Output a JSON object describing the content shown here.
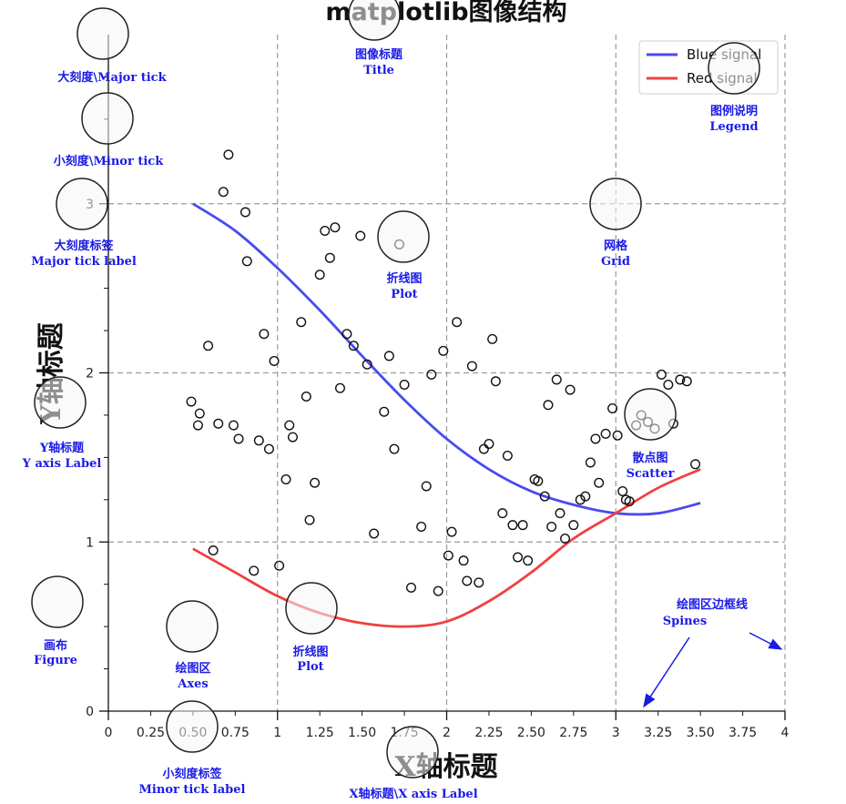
{
  "title": "matplotlib图像结构",
  "chart_data": {
    "type": "line",
    "title": "matplotlib图像结构",
    "xlabel": "X轴标题",
    "ylabel": "Y轴标题",
    "xlim": [
      0,
      4
    ],
    "ylim": [
      0,
      4
    ],
    "grid": true,
    "legend_position": "top-right",
    "x_major_ticks": [
      0,
      1,
      2,
      3,
      4
    ],
    "y_major_ticks": [
      0,
      1,
      2,
      3
    ],
    "x_minor_tick_labels": [
      "0.25",
      "0.50",
      "0.75",
      "1.25",
      "1.50",
      "1.75",
      "2.25",
      "2.50",
      "2.75",
      "3.25",
      "3.50",
      "3.75"
    ],
    "x_minor_ticks": [
      0.25,
      0.5,
      0.75,
      1.25,
      1.5,
      1.75,
      2.25,
      2.5,
      2.75,
      3.25,
      3.5,
      3.75
    ],
    "y_minor_ticks": [
      0.25,
      0.5,
      0.75,
      1.25,
      1.5,
      1.75,
      2.25,
      2.5,
      2.75,
      3.25,
      3.5,
      3.75
    ],
    "series": [
      {
        "name": "Blue signal",
        "color": "#4a4af0",
        "kind": "line",
        "x": [
          0.5,
          0.75,
          1.0,
          1.25,
          1.5,
          1.75,
          2.0,
          2.25,
          2.5,
          2.75,
          3.0,
          3.25,
          3.5
        ],
        "y": [
          3.0,
          2.84,
          2.62,
          2.37,
          2.1,
          1.84,
          1.61,
          1.43,
          1.3,
          1.22,
          1.17,
          1.17,
          1.23
        ]
      },
      {
        "name": "Red signal",
        "color": "#f04040",
        "kind": "line",
        "x": [
          0.5,
          0.75,
          1.0,
          1.25,
          1.5,
          1.75,
          2.0,
          2.25,
          2.5,
          2.75,
          3.0,
          3.25,
          3.5
        ],
        "y": [
          0.96,
          0.82,
          0.68,
          0.58,
          0.52,
          0.5,
          0.53,
          0.65,
          0.82,
          1.02,
          1.17,
          1.32,
          1.43
        ]
      },
      {
        "name": "",
        "kind": "scatter",
        "points": [
          [
            0.71,
            3.29
          ],
          [
            0.68,
            3.07
          ],
          [
            0.81,
            2.95
          ],
          [
            0.82,
            2.66
          ],
          [
            0.59,
            2.16
          ],
          [
            0.92,
            2.23
          ],
          [
            0.98,
            2.07
          ],
          [
            0.49,
            1.83
          ],
          [
            0.54,
            1.76
          ],
          [
            0.53,
            1.69
          ],
          [
            0.65,
            1.7
          ],
          [
            0.74,
            1.69
          ],
          [
            0.77,
            1.61
          ],
          [
            0.89,
            1.6
          ],
          [
            0.95,
            1.55
          ],
          [
            0.62,
            0.95
          ],
          [
            0.86,
            0.83
          ],
          [
            1.01,
            0.86
          ],
          [
            1.05,
            1.37
          ],
          [
            1.07,
            1.69
          ],
          [
            1.09,
            1.62
          ],
          [
            1.14,
            2.3
          ],
          [
            1.17,
            1.86
          ],
          [
            1.19,
            1.13
          ],
          [
            1.22,
            1.35
          ],
          [
            1.25,
            2.58
          ],
          [
            1.28,
            2.84
          ],
          [
            1.31,
            2.68
          ],
          [
            1.34,
            2.86
          ],
          [
            1.37,
            1.91
          ],
          [
            1.41,
            2.23
          ],
          [
            1.45,
            2.16
          ],
          [
            1.49,
            2.81
          ],
          [
            1.53,
            2.05
          ],
          [
            1.57,
            1.05
          ],
          [
            1.63,
            1.77
          ],
          [
            1.66,
            2.1
          ],
          [
            1.69,
            1.55
          ],
          [
            1.72,
            2.76
          ],
          [
            1.75,
            1.93
          ],
          [
            1.79,
            0.73
          ],
          [
            1.85,
            1.09
          ],
          [
            1.88,
            1.33
          ],
          [
            1.91,
            1.99
          ],
          [
            1.95,
            0.71
          ],
          [
            1.98,
            2.13
          ],
          [
            2.01,
            0.92
          ],
          [
            2.03,
            1.06
          ],
          [
            2.06,
            2.3
          ],
          [
            2.1,
            0.89
          ],
          [
            2.12,
            0.77
          ],
          [
            2.15,
            2.04
          ],
          [
            2.19,
            0.76
          ],
          [
            2.22,
            1.55
          ],
          [
            2.25,
            1.58
          ],
          [
            2.27,
            2.2
          ],
          [
            2.29,
            1.95
          ],
          [
            2.33,
            1.17
          ],
          [
            2.36,
            1.51
          ],
          [
            2.39,
            1.1
          ],
          [
            2.42,
            0.91
          ],
          [
            2.45,
            1.1
          ],
          [
            2.48,
            0.89
          ],
          [
            2.52,
            1.37
          ],
          [
            2.54,
            1.36
          ],
          [
            2.58,
            1.27
          ],
          [
            2.6,
            1.81
          ],
          [
            2.62,
            1.09
          ],
          [
            2.65,
            1.96
          ],
          [
            2.67,
            1.17
          ],
          [
            2.7,
            1.02
          ],
          [
            2.73,
            1.9
          ],
          [
            2.75,
            1.1
          ],
          [
            2.79,
            1.25
          ],
          [
            2.82,
            1.27
          ],
          [
            2.85,
            1.47
          ],
          [
            2.88,
            1.61
          ],
          [
            2.9,
            1.35
          ],
          [
            2.94,
            1.64
          ],
          [
            2.98,
            1.79
          ],
          [
            3.01,
            1.63
          ],
          [
            3.04,
            1.3
          ],
          [
            3.06,
            1.25
          ],
          [
            3.08,
            1.24
          ],
          [
            3.12,
            1.69
          ],
          [
            3.15,
            1.75
          ],
          [
            3.19,
            1.71
          ],
          [
            3.23,
            1.67
          ],
          [
            3.27,
            1.99
          ],
          [
            3.31,
            1.93
          ],
          [
            3.34,
            1.7
          ],
          [
            3.38,
            1.96
          ],
          [
            3.42,
            1.95
          ],
          [
            3.47,
            1.46
          ]
        ]
      }
    ]
  },
  "legend": [
    {
      "label": "Blue signal",
      "color": "#4a4af0"
    },
    {
      "label": "Red signal",
      "color": "#f04040"
    }
  ],
  "annotations": [
    {
      "cn": "大刻度\\Major tick",
      "en": ""
    },
    {
      "cn": "小刻度\\Minor tick",
      "en": ""
    },
    {
      "cn": "大刻度标签",
      "en": "Major tick label"
    },
    {
      "cn": "Y轴标题",
      "en": "Y axis Label"
    },
    {
      "cn": "画布",
      "en": "Figure"
    },
    {
      "cn": "绘图区",
      "en": "Axes"
    },
    {
      "cn": "小刻度标签",
      "en": "Minor tick label"
    },
    {
      "cn": "折线图",
      "en": "Plot"
    },
    {
      "cn": "X轴标题\\X axis Label",
      "en": ""
    },
    {
      "cn": "图像标题",
      "en": "Title"
    },
    {
      "cn": "折线图",
      "en": "Plot"
    },
    {
      "cn": "网格",
      "en": "Grid"
    },
    {
      "cn": "图例说明",
      "en": "Legend"
    },
    {
      "cn": "散点图",
      "en": "Scatter"
    },
    {
      "cn": "绘图区边框线",
      "en": "Spines"
    }
  ]
}
